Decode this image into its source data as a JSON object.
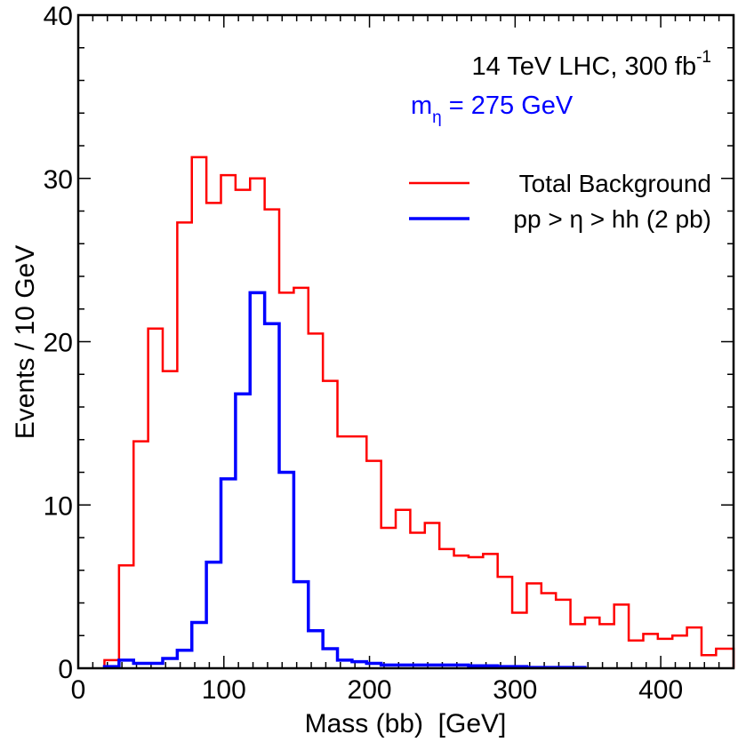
{
  "chart_data": {
    "type": "histogram",
    "xlabel": "Mass (bb)  [GeV]",
    "ylabel": "Events / 10 GeV",
    "xlim": [
      0,
      450
    ],
    "ylim": [
      0,
      40
    ],
    "x_ticks": [
      0,
      100,
      200,
      300,
      400
    ],
    "y_ticks": [
      0,
      10,
      20,
      30,
      40
    ],
    "bin_width": 10,
    "annotations": {
      "line1": "14 TeV LHC, 300 fb",
      "line1_sup": "-1",
      "line2_m": "m",
      "line2_sub": "η",
      "line2_rest": " = 275 GeV"
    },
    "legend_position": "top-right",
    "series": [
      {
        "name": "Total Background",
        "color": "#ff0000",
        "bin_edges": [
          18,
          28,
          38,
          48,
          58,
          68,
          78,
          88,
          98,
          108,
          118,
          128,
          138,
          148,
          158,
          168,
          178,
          188,
          198,
          208,
          218,
          228,
          238,
          248,
          258,
          268,
          278,
          288,
          298,
          308,
          318,
          328,
          338,
          348,
          358,
          368,
          378,
          388,
          398,
          408,
          418,
          428,
          438,
          450
        ],
        "values": [
          0.5,
          6.3,
          13.9,
          20.8,
          18.2,
          27.3,
          31.3,
          28.5,
          30.2,
          29.3,
          30.0,
          28.1,
          23.0,
          23.3,
          20.5,
          17.6,
          14.2,
          14.2,
          12.7,
          8.6,
          9.7,
          8.3,
          8.9,
          7.3,
          6.9,
          6.8,
          7.0,
          5.6,
          3.4,
          5.2,
          4.6,
          4.2,
          2.7,
          3.1,
          2.7,
          3.9,
          1.7,
          2.1,
          1.8,
          2.0,
          2.5,
          0.8,
          1.2
        ]
      },
      {
        "name": "pp > η > hh (2 pb)",
        "color": "#0000ff",
        "bin_edges": [
          18,
          28,
          38,
          48,
          58,
          68,
          78,
          88,
          98,
          108,
          118,
          128,
          138,
          148,
          158,
          168,
          178,
          188,
          198,
          208,
          218,
          228,
          238,
          248,
          258,
          268,
          278,
          288,
          298,
          308,
          318,
          328,
          338,
          348
        ],
        "values": [
          0.1,
          0.5,
          0.3,
          0.3,
          0.6,
          1.1,
          2.8,
          6.5,
          11.6,
          16.8,
          23.0,
          21.1,
          12.0,
          5.3,
          2.3,
          1.2,
          0.5,
          0.4,
          0.3,
          0.2,
          0.2,
          0.2,
          0.2,
          0.2,
          0.2,
          0.15,
          0.15,
          0.1,
          0.1,
          0.05,
          0.05,
          0.05,
          0.05
        ]
      }
    ]
  }
}
